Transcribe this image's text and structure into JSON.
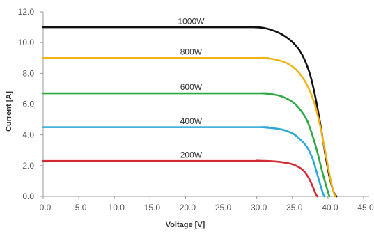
{
  "chart_data": {
    "type": "line",
    "title": "",
    "xlabel": "Voltage [V]",
    "ylabel": "Current [A]",
    "xlim": [
      0,
      45
    ],
    "ylim": [
      0,
      12
    ],
    "x_ticks": [
      "0.0",
      "5.0",
      "10.0",
      "15.0",
      "20.0",
      "25.0",
      "30.0",
      "35.0",
      "40.0",
      "45.0"
    ],
    "y_ticks": [
      "0.0",
      "2.0",
      "4.0",
      "6.0",
      "8.0",
      "10.0",
      "12.0"
    ],
    "grid": false,
    "legend": "inline labels above curves",
    "series": [
      {
        "name": "1000W",
        "color": "#111111",
        "label_x": 20.0,
        "label_y": 11.4,
        "points": [
          [
            0,
            11.0
          ],
          [
            28,
            11.0
          ],
          [
            29.5,
            11.0
          ],
          [
            31,
            10.95
          ],
          [
            32.5,
            10.75
          ],
          [
            34,
            10.4
          ],
          [
            35.5,
            9.8
          ],
          [
            36.5,
            9.1
          ],
          [
            37.5,
            7.9
          ],
          [
            38.3,
            6.3
          ],
          [
            39.0,
            4.5
          ],
          [
            39.6,
            2.8
          ],
          [
            40.2,
            1.3
          ],
          [
            40.8,
            0.3
          ],
          [
            41.2,
            0.0
          ]
        ]
      },
      {
        "name": "800W",
        "color": "#F2B316",
        "label_x": 20.0,
        "label_y": 9.4,
        "points": [
          [
            0,
            9.0
          ],
          [
            29,
            9.0
          ],
          [
            30.5,
            9.0
          ],
          [
            32,
            8.95
          ],
          [
            33.5,
            8.8
          ],
          [
            35,
            8.45
          ],
          [
            36,
            8.0
          ],
          [
            37,
            7.3
          ],
          [
            38,
            6.2
          ],
          [
            38.8,
            4.8
          ],
          [
            39.5,
            3.2
          ],
          [
            40.1,
            1.7
          ],
          [
            40.6,
            0.6
          ],
          [
            41.0,
            0.0
          ]
        ]
      },
      {
        "name": "600W",
        "color": "#2EAA45",
        "label_x": 20.0,
        "label_y": 7.1,
        "points": [
          [
            0,
            6.7
          ],
          [
            29,
            6.7
          ],
          [
            30.5,
            6.7
          ],
          [
            32,
            6.65
          ],
          [
            33.5,
            6.5
          ],
          [
            35,
            6.15
          ],
          [
            36,
            5.7
          ],
          [
            37,
            5.0
          ],
          [
            37.8,
            4.0
          ],
          [
            38.5,
            2.9
          ],
          [
            39.2,
            1.6
          ],
          [
            39.8,
            0.6
          ],
          [
            40.2,
            0.0
          ]
        ]
      },
      {
        "name": "400W",
        "color": "#2AA8DC",
        "label_x": 20.0,
        "label_y": 4.9,
        "points": [
          [
            0,
            4.5
          ],
          [
            29,
            4.5
          ],
          [
            30.5,
            4.5
          ],
          [
            32,
            4.45
          ],
          [
            33.5,
            4.35
          ],
          [
            35,
            4.1
          ],
          [
            36,
            3.75
          ],
          [
            37,
            3.25
          ],
          [
            37.8,
            2.5
          ],
          [
            38.4,
            1.6
          ],
          [
            38.9,
            0.8
          ],
          [
            39.3,
            0.2
          ],
          [
            39.5,
            0.0
          ]
        ]
      },
      {
        "name": "200W",
        "color": "#D42A35",
        "label_x": 20.0,
        "label_y": 2.7,
        "points": [
          [
            0,
            2.3
          ],
          [
            28,
            2.3
          ],
          [
            30,
            2.32
          ],
          [
            31.5,
            2.3
          ],
          [
            33,
            2.25
          ],
          [
            34.5,
            2.15
          ],
          [
            35.5,
            2.0
          ],
          [
            36.5,
            1.7
          ],
          [
            37.3,
            1.2
          ],
          [
            37.9,
            0.6
          ],
          [
            38.3,
            0.15
          ],
          [
            38.5,
            0.0
          ]
        ]
      }
    ]
  }
}
